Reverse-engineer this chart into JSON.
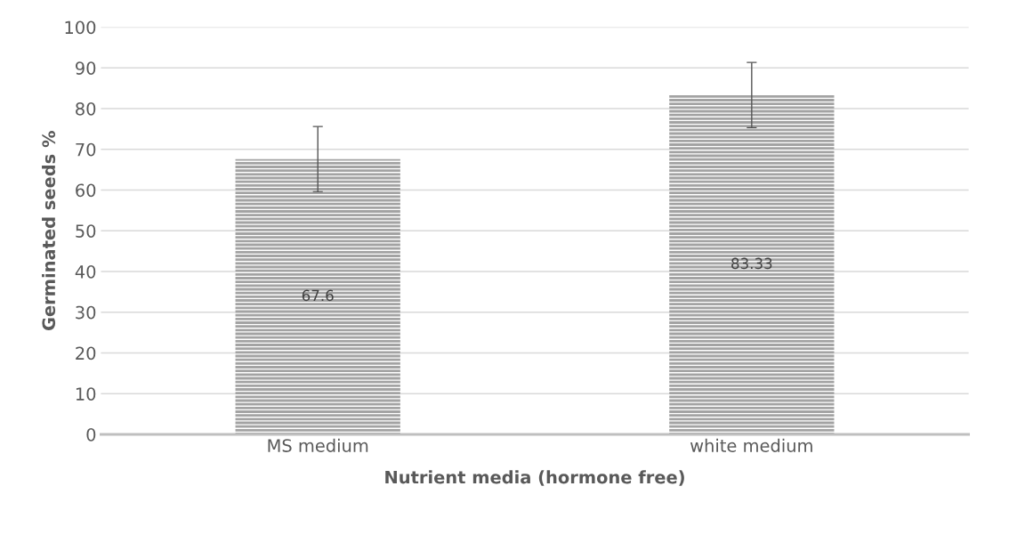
{
  "chart_data": {
    "type": "bar",
    "categories": [
      "MS medium",
      "white medium"
    ],
    "values": [
      67.6,
      83.33
    ],
    "errors": [
      8,
      8
    ],
    "color": "#a3a3a3",
    "data_labels": true,
    "xlabel": "Nutrient media (hormone free)",
    "ylabel": "Germinated seeds %",
    "ylim": [
      0,
      100
    ],
    "yticks": [
      0,
      10,
      20,
      30,
      40,
      50,
      60,
      70,
      80,
      90,
      100
    ],
    "grid": "y"
  }
}
